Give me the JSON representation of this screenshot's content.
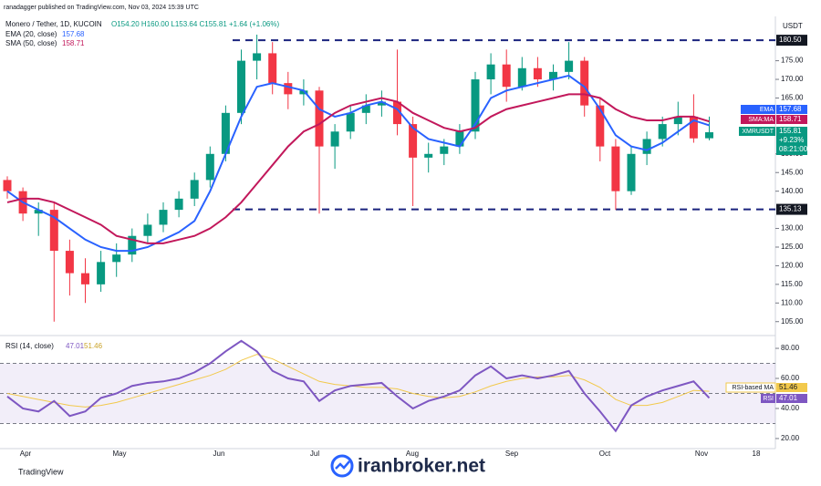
{
  "chart_data": {
    "type": "candlestick",
    "publisher": "ranadagger published on TradingView.com, Nov 03, 2024 15:39 UTC",
    "title": "Monero / Tether, 1D, KUCOIN",
    "ohlc_text": "O154.20 H160.00 L153.64 C155.81 +1.64 (+1.06%)",
    "currency": "USDT",
    "up_color": "#089981",
    "down_color": "#f23645",
    "open": [
      143,
      140,
      134,
      135,
      124,
      118,
      115,
      121,
      123,
      128,
      131,
      135,
      138,
      143,
      150,
      161,
      175,
      177,
      169,
      166,
      167,
      152,
      156,
      161,
      163,
      164,
      158,
      149,
      150,
      152,
      156,
      170,
      174,
      168,
      173,
      170,
      172,
      175,
      163,
      152,
      140,
      150,
      154,
      158,
      160,
      154.2
    ],
    "high": [
      144,
      141,
      137,
      137,
      127,
      122,
      124,
      126,
      130,
      134,
      137,
      140,
      145,
      152,
      163,
      178,
      182,
      180,
      172,
      170,
      168,
      158,
      163,
      166,
      167,
      178,
      160,
      153,
      154,
      158,
      172,
      177,
      178,
      176,
      176,
      174,
      180,
      176,
      165,
      154,
      152,
      156,
      160,
      164,
      166,
      160
    ],
    "low": [
      138,
      132,
      128,
      105,
      112,
      110,
      113,
      117,
      121,
      126,
      129,
      133,
      136,
      141,
      148,
      158,
      170,
      166,
      162,
      163,
      134,
      146,
      154,
      158,
      160,
      155,
      136,
      145,
      147,
      150,
      154,
      166,
      164,
      167,
      168,
      167,
      170,
      160,
      148,
      135,
      139,
      147,
      152,
      155,
      153,
      153.64
    ],
    "close": [
      140,
      134,
      135,
      124,
      118,
      115,
      121,
      123,
      128,
      131,
      135,
      138,
      143,
      150,
      161,
      175,
      177,
      169,
      166,
      167,
      152,
      156,
      161,
      163,
      164,
      158,
      149,
      150,
      152,
      156,
      170,
      174,
      168,
      173,
      170,
      172,
      175,
      163,
      152,
      140,
      150,
      154,
      158,
      160,
      154.17,
      155.81
    ],
    "series": [
      {
        "name": "EMA (20, close)",
        "last_label": "157.68",
        "tag": "EMA",
        "color": "#2962ff",
        "values": [
          140,
          137,
          135,
          133,
          130,
          127,
          125,
          124,
          124,
          125,
          127,
          129,
          132,
          140,
          150,
          160,
          168,
          169,
          168,
          167,
          162,
          160,
          161,
          163,
          164,
          162,
          157,
          154,
          153,
          152,
          158,
          165,
          167,
          168,
          169,
          170,
          171,
          168,
          162,
          155,
          152,
          151,
          153,
          156,
          159,
          157.68
        ]
      },
      {
        "name": "SMA (50, close)",
        "last_label": "158.71",
        "tag": "SMA:MA",
        "color": "#c2185b",
        "values": [
          137,
          138,
          138,
          137,
          135,
          133,
          131,
          128,
          127,
          126,
          126,
          127,
          128,
          130,
          133,
          137,
          142,
          147,
          152,
          156,
          158,
          161,
          163,
          164,
          165,
          164,
          161,
          159,
          157,
          156,
          157,
          160,
          162,
          163,
          164,
          165,
          166,
          166,
          165,
          162,
          160,
          159,
          159,
          160,
          160,
          158.71
        ]
      }
    ],
    "price_tag": {
      "symbol": "XMRUSDT",
      "price": "155.81",
      "change": "+9.23%",
      "countdown": "08:21:00"
    },
    "levels": [
      {
        "value": 180.5,
        "label": "180.50"
      },
      {
        "value": 135.13,
        "label": "135.13"
      }
    ],
    "ylim": [
      102,
      186.4
    ],
    "yticks": [
      {
        "value": 105,
        "label": "105.00"
      },
      {
        "value": 110,
        "label": "110.00"
      },
      {
        "value": 115,
        "label": "115.00"
      },
      {
        "value": 120,
        "label": "120.00"
      },
      {
        "value": 125,
        "label": "125.00"
      },
      {
        "value": 130,
        "label": "130.00"
      },
      {
        "value": 140,
        "label": "140.00"
      },
      {
        "value": 145,
        "label": "145.00"
      },
      {
        "value": 150,
        "label": "150.00"
      },
      {
        "value": 165,
        "label": "165.00"
      },
      {
        "value": 170,
        "label": "170.00"
      },
      {
        "value": 175,
        "label": "175.00"
      }
    ],
    "xlabels": [
      "Apr",
      "May",
      "Jun",
      "Jul",
      "Aug",
      "Sep",
      "Oct",
      "Nov",
      "18"
    ],
    "rsi": {
      "title": "RSI (14, close)",
      "value_text": "47.01",
      "ma_text": "51.46",
      "ma_name": "RSI-based MA",
      "name": "RSI",
      "color": "#7e57c2",
      "ma_color": "#f2c94c",
      "values": [
        48,
        40,
        38,
        45,
        35,
        38,
        47,
        50,
        55,
        57,
        58,
        60,
        64,
        70,
        78,
        85,
        78,
        65,
        60,
        58,
        45,
        52,
        55,
        56,
        57,
        48,
        40,
        45,
        48,
        52,
        62,
        68,
        60,
        62,
        60,
        62,
        65,
        50,
        38,
        25,
        42,
        48,
        52,
        55,
        58,
        47.01
      ],
      "ma": [
        50,
        48,
        46,
        44,
        42,
        41,
        42,
        44,
        47,
        50,
        53,
        56,
        59,
        62,
        66,
        72,
        76,
        73,
        68,
        63,
        58,
        56,
        55,
        54,
        54,
        53,
        50,
        48,
        47,
        48,
        51,
        55,
        58,
        60,
        61,
        61,
        62,
        59,
        54,
        46,
        42,
        42,
        44,
        48,
        52,
        51.46
      ],
      "bands": [
        30,
        50,
        70
      ],
      "ylim": [
        14.5,
        87.3
      ],
      "yticks": [
        {
          "value": 20,
          "label": "20.00"
        },
        {
          "value": 40,
          "label": "40.00"
        },
        {
          "value": 60,
          "label": "60.00"
        },
        {
          "value": 80,
          "label": "80.00"
        }
      ]
    },
    "watermark": "iranbroker.net",
    "brand": "TradingView"
  }
}
